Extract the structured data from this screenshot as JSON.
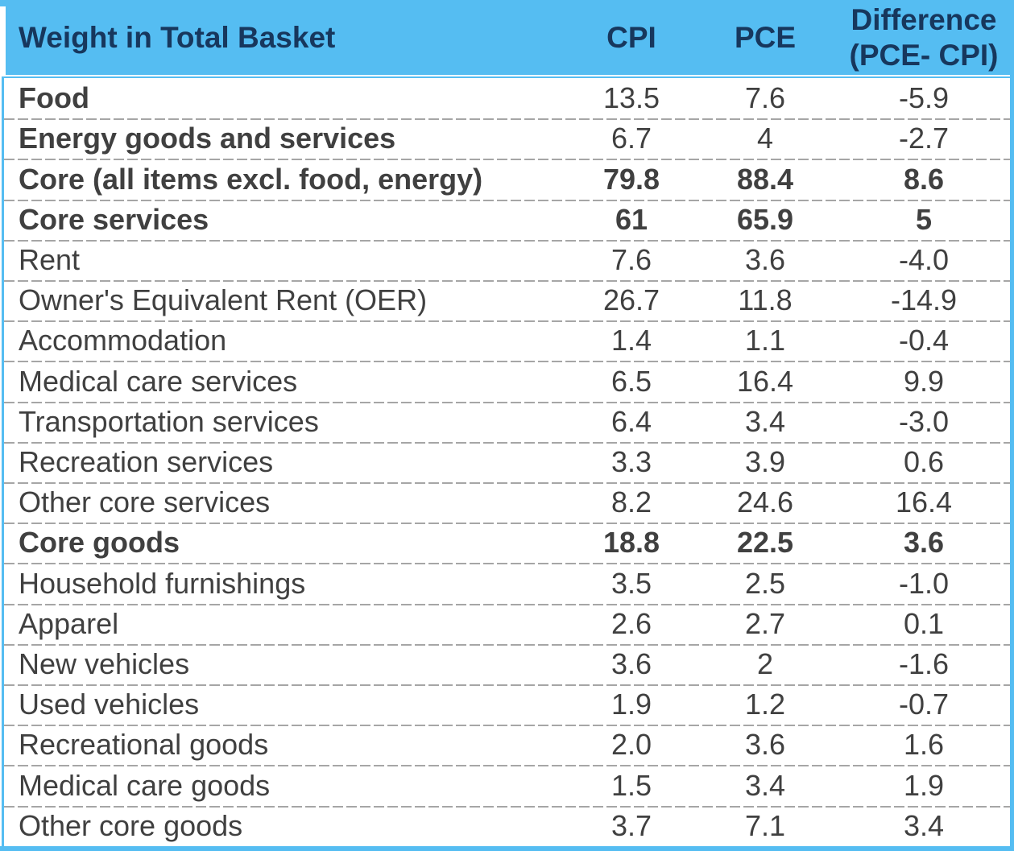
{
  "colors": {
    "header_bg": "#55BDF2",
    "header_text": "#17375D",
    "body_text": "#404040",
    "divider": "#A6A6A6"
  },
  "table": {
    "header": {
      "label": "Weight in Total Basket",
      "cpi": "CPI",
      "pce": "PCE",
      "difference_line1": "Difference",
      "difference_line2": "(PCE- CPI)"
    },
    "rows": [
      {
        "label": "Food",
        "cpi": "13.5",
        "pce": "7.6",
        "diff": "-5.9",
        "label_bold": true,
        "values_bold": false
      },
      {
        "label": "Energy goods and services",
        "cpi": "6.7",
        "pce": "4",
        "diff": "-2.7",
        "label_bold": true,
        "values_bold": false
      },
      {
        "label": "Core (all items excl. food, energy)",
        "cpi": "79.8",
        "pce": "88.4",
        "diff": "8.6",
        "label_bold": true,
        "values_bold": true
      },
      {
        "label": "Core services",
        "cpi": "61",
        "pce": "65.9",
        "diff": "5",
        "label_bold": true,
        "values_bold": true
      },
      {
        "label": "Rent",
        "cpi": "7.6",
        "pce": "3.6",
        "diff": "-4.0",
        "label_bold": false,
        "values_bold": false
      },
      {
        "label": "Owner's Equivalent Rent (OER)",
        "cpi": "26.7",
        "pce": "11.8",
        "diff": "-14.9",
        "label_bold": false,
        "values_bold": false
      },
      {
        "label": "Accommodation",
        "cpi": "1.4",
        "pce": "1.1",
        "diff": "-0.4",
        "label_bold": false,
        "values_bold": false
      },
      {
        "label": "Medical care services",
        "cpi": "6.5",
        "pce": "16.4",
        "diff": "9.9",
        "label_bold": false,
        "values_bold": false
      },
      {
        "label": "Transportation services",
        "cpi": "6.4",
        "pce": "3.4",
        "diff": "-3.0",
        "label_bold": false,
        "values_bold": false
      },
      {
        "label": "Recreation services",
        "cpi": "3.3",
        "pce": "3.9",
        "diff": "0.6",
        "label_bold": false,
        "values_bold": false
      },
      {
        "label": "Other core services",
        "cpi": "8.2",
        "pce": "24.6",
        "diff": "16.4",
        "label_bold": false,
        "values_bold": false
      },
      {
        "label": "Core goods",
        "cpi": "18.8",
        "pce": "22.5",
        "diff": "3.6",
        "label_bold": true,
        "values_bold": true
      },
      {
        "label": "Household furnishings",
        "cpi": "3.5",
        "pce": "2.5",
        "diff": "-1.0",
        "label_bold": false,
        "values_bold": false
      },
      {
        "label": "Apparel",
        "cpi": "2.6",
        "pce": "2.7",
        "diff": "0.1",
        "label_bold": false,
        "values_bold": false
      },
      {
        "label": "New vehicles",
        "cpi": "3.6",
        "pce": "2",
        "diff": "-1.6",
        "label_bold": false,
        "values_bold": false
      },
      {
        "label": "Used vehicles",
        "cpi": "1.9",
        "pce": "1.2",
        "diff": "-0.7",
        "label_bold": false,
        "values_bold": false
      },
      {
        "label": "Recreational goods",
        "cpi": "2.0",
        "pce": "3.6",
        "diff": "1.6",
        "label_bold": false,
        "values_bold": false
      },
      {
        "label": "Medical care goods",
        "cpi": "1.5",
        "pce": "3.4",
        "diff": "1.9",
        "label_bold": false,
        "values_bold": false
      },
      {
        "label": "Other core goods",
        "cpi": "3.7",
        "pce": "7.1",
        "diff": "3.4",
        "label_bold": false,
        "values_bold": false
      }
    ]
  },
  "chart_data": {
    "type": "table",
    "title": "Weight in Total Basket",
    "columns": [
      "Weight in Total Basket",
      "CPI",
      "PCE",
      "Difference (PCE- CPI)"
    ],
    "rows": [
      [
        "Food",
        13.5,
        7.6,
        -5.9
      ],
      [
        "Energy goods and services",
        6.7,
        4,
        -2.7
      ],
      [
        "Core (all items excl. food, energy)",
        79.8,
        88.4,
        8.6
      ],
      [
        "Core services",
        61,
        65.9,
        5
      ],
      [
        "Rent",
        7.6,
        3.6,
        -4.0
      ],
      [
        "Owner's Equivalent Rent (OER)",
        26.7,
        11.8,
        -14.9
      ],
      [
        "Accommodation",
        1.4,
        1.1,
        -0.4
      ],
      [
        "Medical care services",
        6.5,
        16.4,
        9.9
      ],
      [
        "Transportation services",
        6.4,
        3.4,
        -3.0
      ],
      [
        "Recreation services",
        3.3,
        3.9,
        0.6
      ],
      [
        "Other core services",
        8.2,
        24.6,
        16.4
      ],
      [
        "Core goods",
        18.8,
        22.5,
        3.6
      ],
      [
        "Household furnishings",
        3.5,
        2.5,
        -1.0
      ],
      [
        "Apparel",
        2.6,
        2.7,
        0.1
      ],
      [
        "New vehicles",
        3.6,
        2,
        -1.6
      ],
      [
        "Used vehicles",
        1.9,
        1.2,
        -0.7
      ],
      [
        "Recreational goods",
        2.0,
        3.6,
        1.6
      ],
      [
        "Medical care goods",
        1.5,
        3.4,
        1.9
      ],
      [
        "Other core goods",
        3.7,
        7.1,
        3.4
      ]
    ]
  }
}
